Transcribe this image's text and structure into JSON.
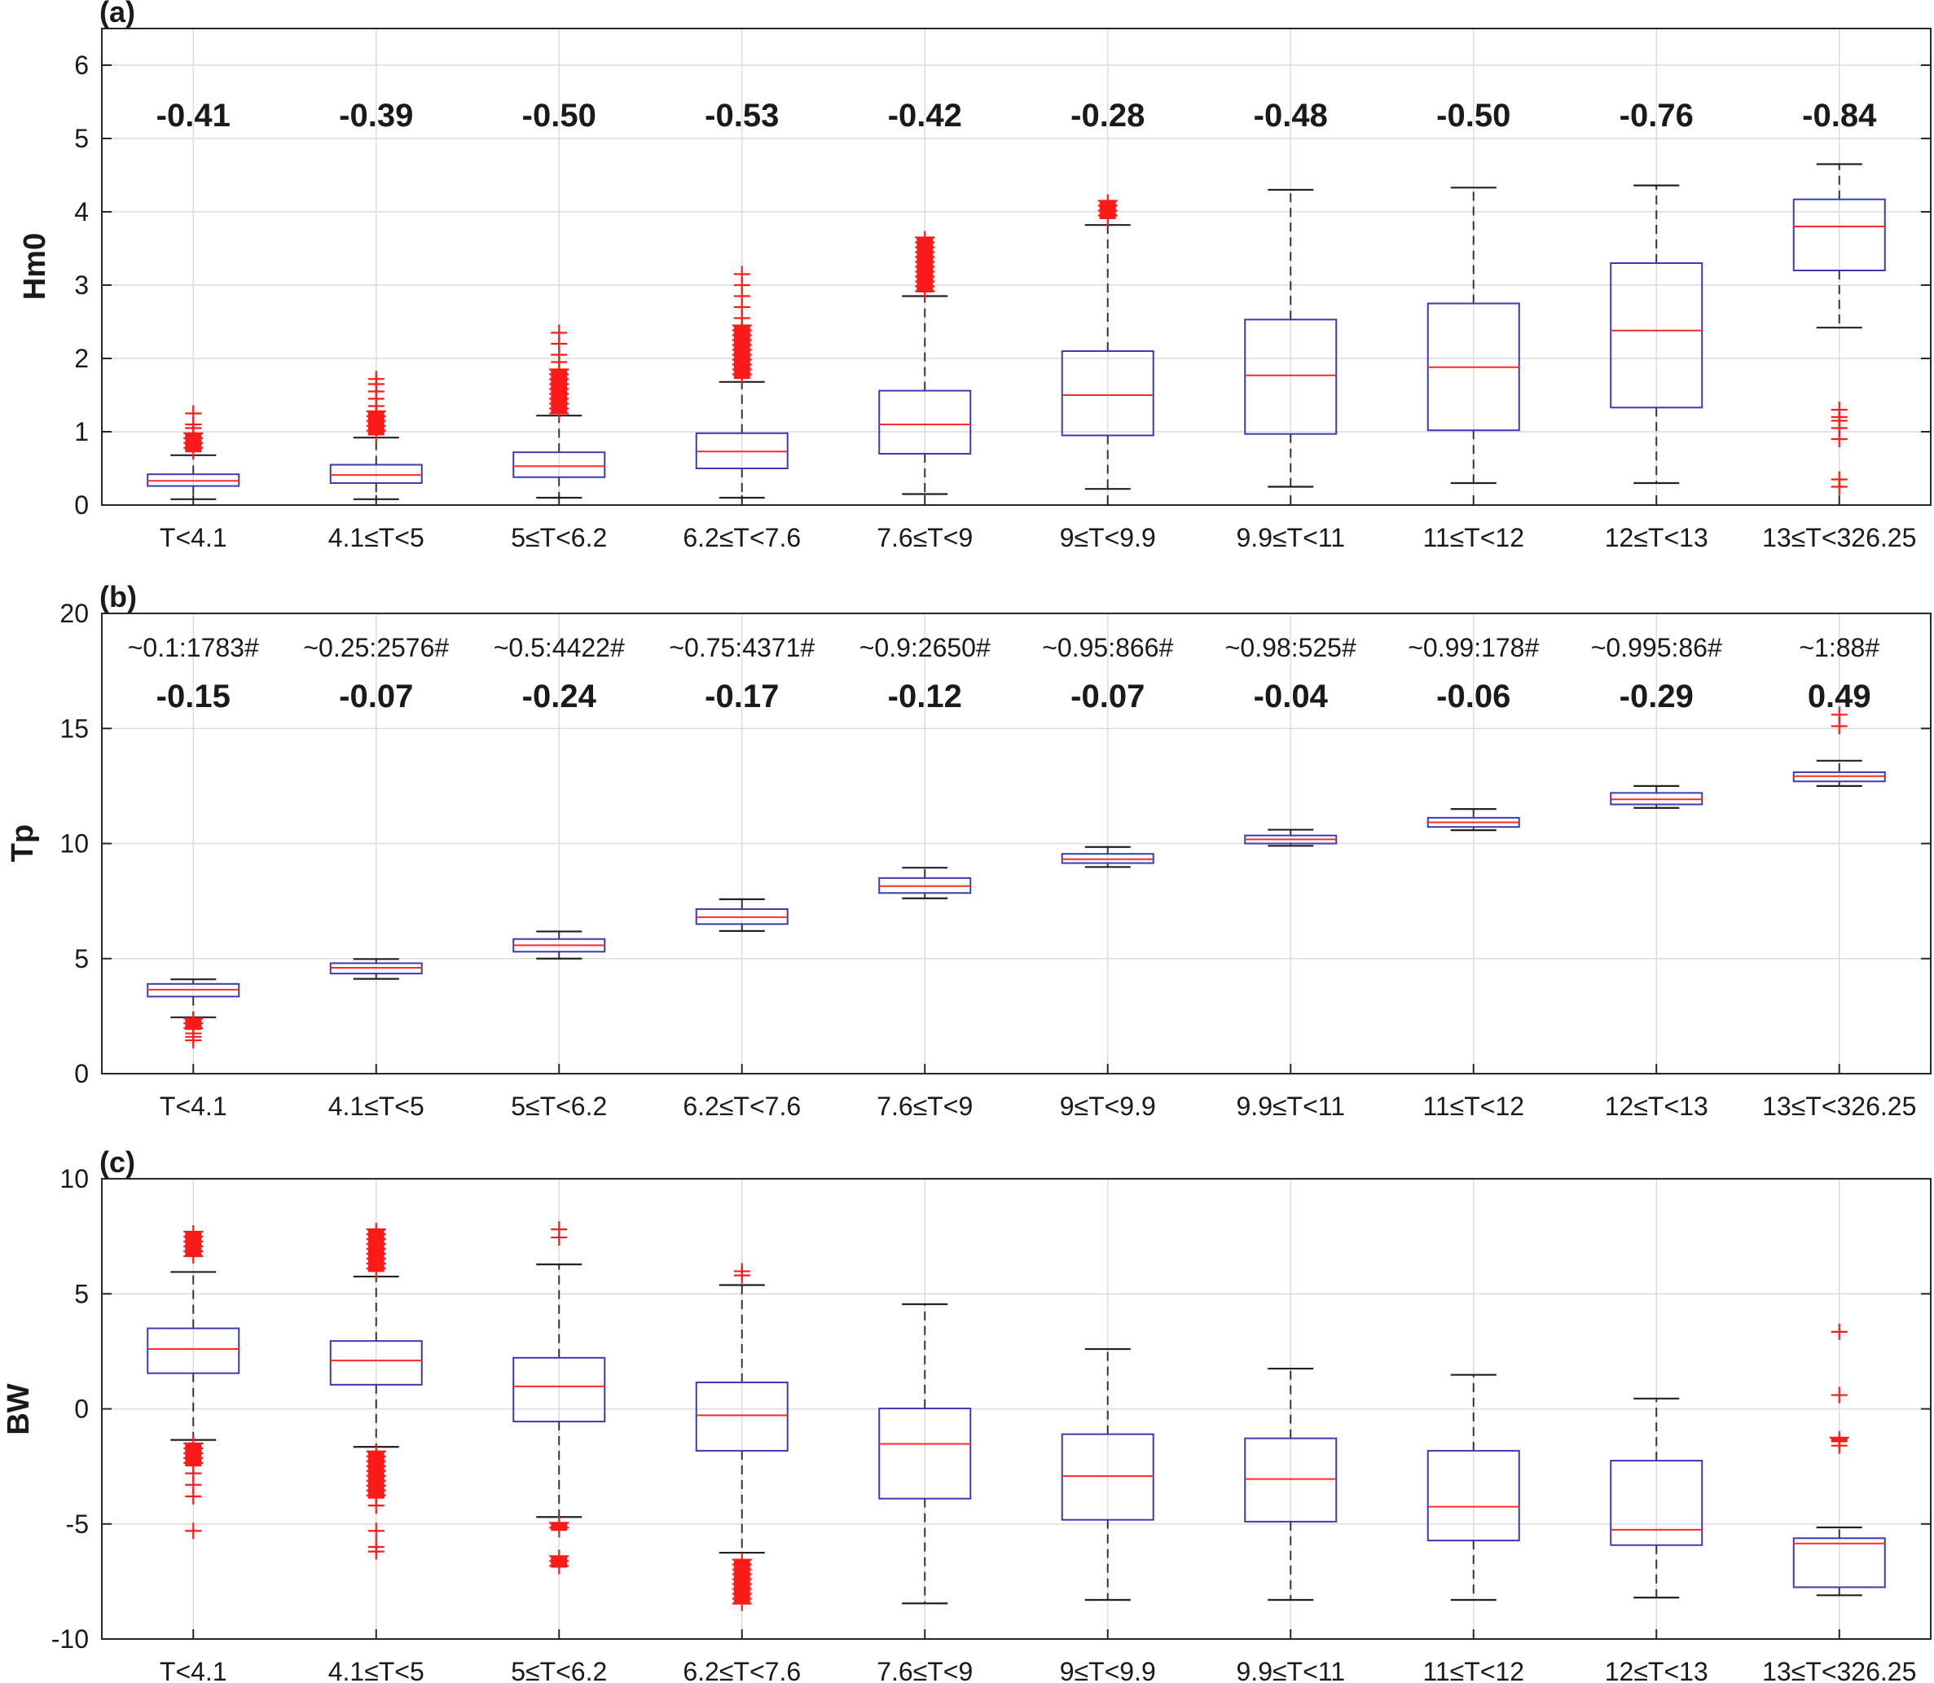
{
  "chart_data": [
    {
      "type": "box",
      "panel_label": "(a)",
      "ylabel": "Hm0",
      "ylim": [
        0,
        6.5
      ],
      "yticks": [
        0,
        1,
        2,
        3,
        4,
        5,
        6
      ],
      "ytick_labels": [
        "0",
        "1",
        "2",
        "3",
        "4",
        "5",
        "6"
      ],
      "categories": [
        "T<4.1",
        "4.1≤T<5",
        "5≤T<6.2",
        "6.2≤T<7.6",
        "7.6≤T<9",
        "9≤T<9.9",
        "9.9≤T<11",
        "11≤T<12",
        "12≤T<13",
        "13≤T<326.25"
      ],
      "correlations": [
        "-0.41",
        "-0.39",
        "-0.50",
        "-0.53",
        "-0.42",
        "-0.28",
        "-0.48",
        "-0.50",
        "-0.76",
        "-0.84"
      ],
      "boxes": [
        {
          "min": 0.08,
          "q1": 0.26,
          "median": 0.33,
          "q3": 0.42,
          "max": 0.68,
          "outliers": [
            [
              0.72,
              0.98
            ],
            1.05,
            1.1,
            1.25
          ]
        },
        {
          "min": 0.08,
          "q1": 0.3,
          "median": 0.41,
          "q3": 0.55,
          "max": 0.92,
          "outliers": [
            [
              0.95,
              1.28
            ],
            1.35,
            1.45,
            1.55,
            1.65,
            1.72
          ]
        },
        {
          "min": 0.1,
          "q1": 0.38,
          "median": 0.53,
          "q3": 0.72,
          "max": 1.22,
          "outliers": [
            [
              1.25,
              1.85
            ],
            1.95,
            2.05,
            2.2,
            2.35
          ]
        },
        {
          "min": 0.1,
          "q1": 0.5,
          "median": 0.73,
          "q3": 0.98,
          "max": 1.68,
          "outliers": [
            [
              1.72,
              2.45
            ],
            2.55,
            2.7,
            2.85,
            3.0,
            3.15
          ]
        },
        {
          "min": 0.15,
          "q1": 0.7,
          "median": 1.1,
          "q3": 1.56,
          "max": 2.85,
          "outliers": [
            [
              2.9,
              3.65
            ]
          ]
        },
        {
          "min": 0.22,
          "q1": 0.95,
          "median": 1.5,
          "q3": 2.1,
          "max": 3.82,
          "outliers": [
            [
              3.9,
              4.15
            ]
          ]
        },
        {
          "min": 0.25,
          "q1": 0.97,
          "median": 1.77,
          "q3": 2.53,
          "max": 4.3,
          "outliers": []
        },
        {
          "min": 0.3,
          "q1": 1.02,
          "median": 1.88,
          "q3": 2.75,
          "max": 4.33,
          "outliers": []
        },
        {
          "min": 0.3,
          "q1": 1.33,
          "median": 2.38,
          "q3": 3.3,
          "max": 4.36,
          "outliers": []
        },
        {
          "min": 2.42,
          "q1": 3.2,
          "median": 3.8,
          "q3": 4.17,
          "max": 4.65,
          "outliers": [
            0.25,
            0.35,
            0.9,
            1.05,
            1.15,
            1.2,
            1.3
          ]
        }
      ]
    },
    {
      "type": "box",
      "panel_label": "(b)",
      "ylabel": "Tp",
      "ylim": [
        0,
        20
      ],
      "yticks": [
        0,
        5,
        10,
        15,
        20
      ],
      "ytick_labels": [
        "0",
        "5",
        "10",
        "15",
        "20"
      ],
      "categories": [
        "T<4.1",
        "4.1≤T<5",
        "5≤T<6.2",
        "6.2≤T<7.6",
        "7.6≤T<9",
        "9≤T<9.9",
        "9.9≤T<11",
        "11≤T<12",
        "12≤T<13",
        "13≤T<326.25"
      ],
      "fractions": [
        "~0.1:1783#",
        "~0.25:2576#",
        "~0.5:4422#",
        "~0.75:4371#",
        "~0.9:2650#",
        "~0.95:866#",
        "~0.98:525#",
        "~0.99:178#",
        "~0.995:86#",
        "~1:88#"
      ],
      "correlations": [
        "-0.15",
        "-0.07",
        "-0.24",
        "-0.17",
        "-0.12",
        "-0.07",
        "-0.04",
        "-0.06",
        "-0.29",
        "0.49"
      ],
      "boxes": [
        {
          "min": 2.45,
          "q1": 3.35,
          "median": 3.65,
          "q3": 3.9,
          "max": 4.1,
          "outliers": [
            [
              1.9,
              2.4
            ],
            1.45,
            1.6,
            1.75
          ]
        },
        {
          "min": 4.12,
          "q1": 4.35,
          "median": 4.6,
          "q3": 4.8,
          "max": 4.98,
          "outliers": []
        },
        {
          "min": 5.0,
          "q1": 5.3,
          "median": 5.58,
          "q3": 5.85,
          "max": 6.18,
          "outliers": []
        },
        {
          "min": 6.2,
          "q1": 6.5,
          "median": 6.8,
          "q3": 7.15,
          "max": 7.58,
          "outliers": []
        },
        {
          "min": 7.62,
          "q1": 7.85,
          "median": 8.15,
          "q3": 8.5,
          "max": 8.95,
          "outliers": []
        },
        {
          "min": 8.98,
          "q1": 9.15,
          "median": 9.32,
          "q3": 9.55,
          "max": 9.85,
          "outliers": []
        },
        {
          "min": 9.9,
          "q1": 10.0,
          "median": 10.18,
          "q3": 10.35,
          "max": 10.6,
          "outliers": []
        },
        {
          "min": 10.58,
          "q1": 10.72,
          "median": 10.92,
          "q3": 11.12,
          "max": 11.5,
          "outliers": []
        },
        {
          "min": 11.55,
          "q1": 11.7,
          "median": 11.92,
          "q3": 12.2,
          "max": 12.5,
          "outliers": []
        },
        {
          "min": 12.5,
          "q1": 12.7,
          "median": 12.93,
          "q3": 13.1,
          "max": 13.6,
          "outliers": [
            15.1,
            15.6
          ]
        }
      ]
    },
    {
      "type": "box",
      "panel_label": "(c)",
      "ylabel": "BW",
      "ylim": [
        -10,
        10
      ],
      "yticks": [
        -10,
        -5,
        0,
        5,
        10
      ],
      "ytick_labels": [
        "-10",
        "-5",
        "0",
        "5",
        "10"
      ],
      "categories": [
        "T<4.1",
        "4.1≤T<5",
        "5≤T<6.2",
        "6.2≤T<7.6",
        "7.6≤T<9",
        "9≤T<9.9",
        "9.9≤T<11",
        "11≤T<12",
        "12≤T<13",
        "13≤T<326.25"
      ],
      "boxes": [
        {
          "min": -1.35,
          "q1": 1.55,
          "median": 2.6,
          "q3": 3.5,
          "max": 5.95,
          "outliers": [
            [
              6.6,
              7.7
            ],
            [
              -2.5,
              -1.5
            ],
            -2.8,
            -3.3,
            -3.8,
            -5.3
          ]
        },
        {
          "min": -1.65,
          "q1": 1.05,
          "median": 2.1,
          "q3": 2.95,
          "max": 5.75,
          "outliers": [
            [
              5.95,
              7.8
            ],
            [
              -3.9,
              -1.85
            ],
            -4.2,
            -5.3,
            -6.0,
            -6.2
          ]
        },
        {
          "min": -4.7,
          "q1": -0.55,
          "median": 0.98,
          "q3": 2.22,
          "max": 6.28,
          "outliers": [
            7.45,
            7.8,
            [
              -5.3,
              -4.95
            ],
            [
              -6.9,
              -6.4
            ]
          ]
        },
        {
          "min": -6.25,
          "q1": -1.82,
          "median": -0.28,
          "q3": 1.15,
          "max": 5.38,
          "outliers": [
            5.8,
            5.98,
            [
              -8.5,
              -6.55
            ]
          ]
        },
        {
          "min": -8.45,
          "q1": -3.9,
          "median": -1.52,
          "q3": 0.02,
          "max": 4.55,
          "outliers": []
        },
        {
          "min": -8.3,
          "q1": -4.82,
          "median": -2.92,
          "q3": -1.1,
          "max": 2.6,
          "outliers": []
        },
        {
          "min": -8.3,
          "q1": -4.9,
          "median": -3.05,
          "q3": -1.28,
          "max": 1.75,
          "outliers": []
        },
        {
          "min": -8.3,
          "q1": -5.72,
          "median": -4.25,
          "q3": -1.82,
          "max": 1.48,
          "outliers": []
        },
        {
          "min": -8.2,
          "q1": -5.92,
          "median": -5.25,
          "q3": -2.25,
          "max": 0.45,
          "outliers": []
        },
        {
          "min": -8.1,
          "q1": -7.75,
          "median": -5.85,
          "q3": -5.62,
          "max": -5.15,
          "outliers": [
            3.35,
            0.6,
            [
              -1.45,
              -1.25
            ],
            -1.6
          ]
        }
      ]
    }
  ]
}
